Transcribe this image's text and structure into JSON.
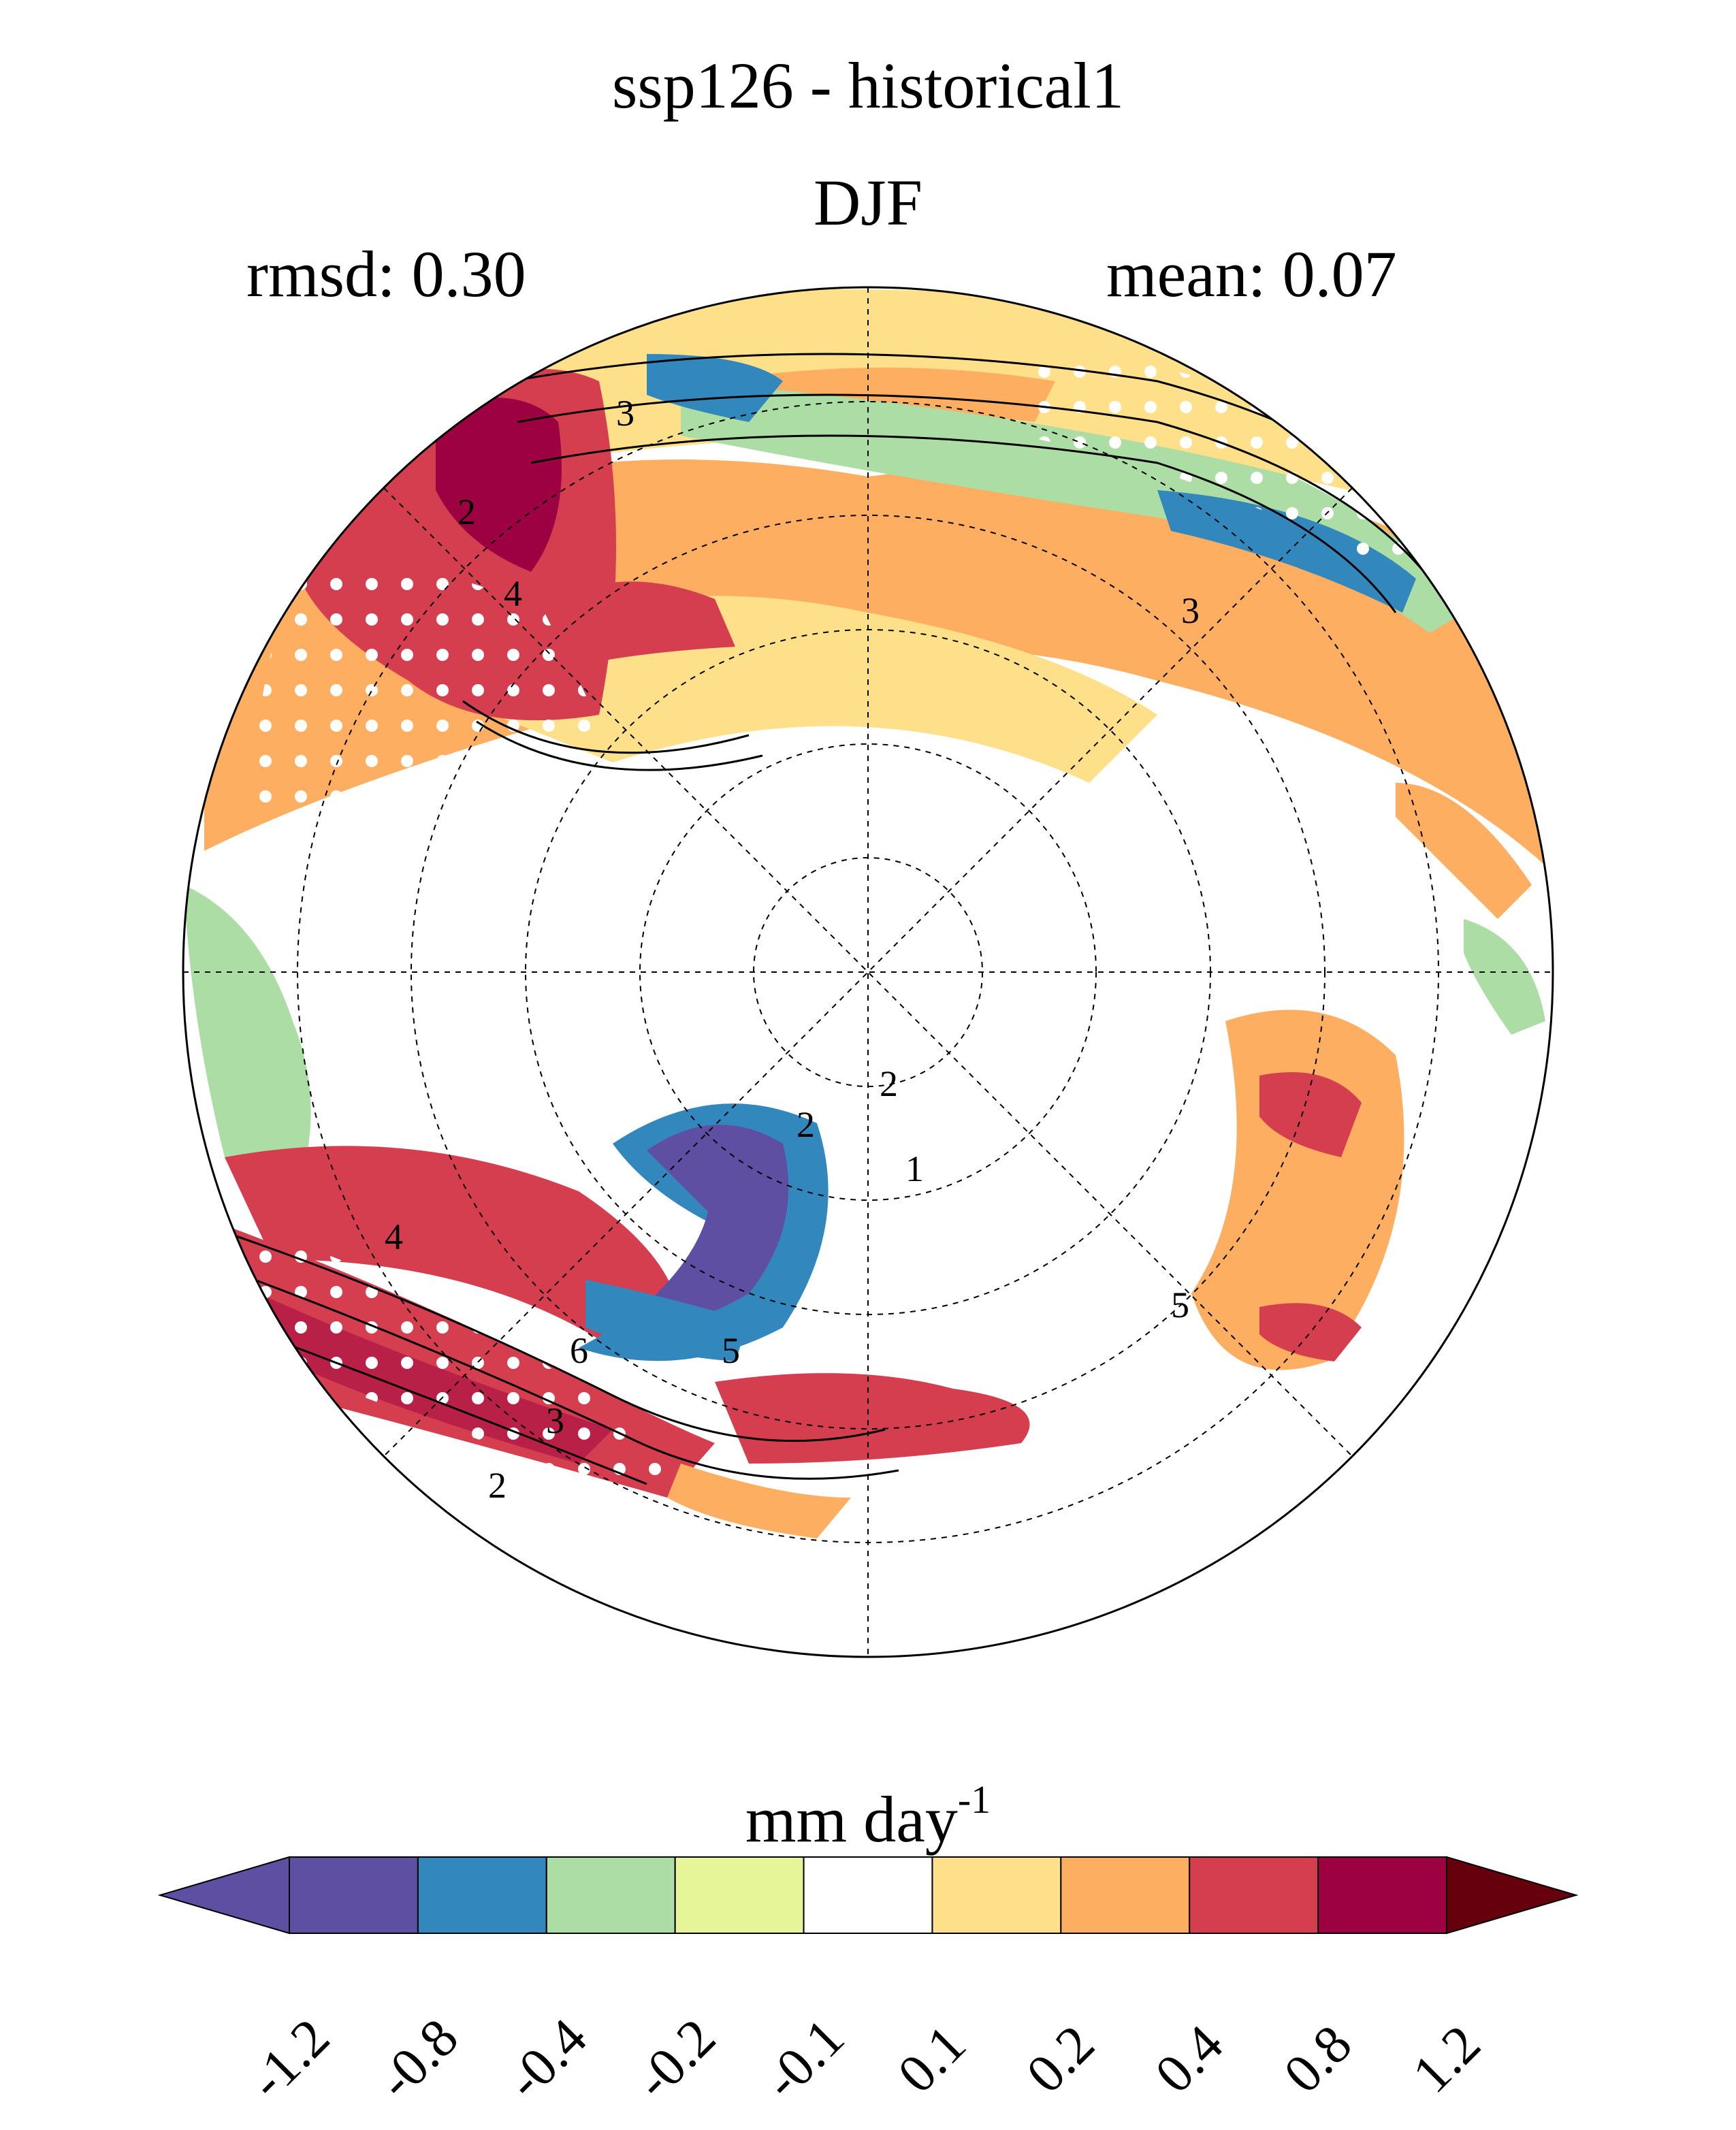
{
  "title": "ssp126 - historical1",
  "season": "DJF",
  "stats": {
    "rmsd": "rmsd: 0.30",
    "mean": "mean: 0.07"
  },
  "colorbar": {
    "units": "mm day",
    "units_exponent": "-1",
    "ticks": [
      "-1.2",
      "-0.8",
      "-0.4",
      "-0.2",
      "-0.1",
      "0.1",
      "0.2",
      "0.4",
      "0.8",
      "1.2"
    ],
    "colors": [
      "#5e4fa2",
      "#5e4fa2",
      "#3288bd",
      "#abdda4",
      "#e6f598",
      "#ffffff",
      "#fee08b",
      "#fdae61",
      "#d53e4f",
      "#9e0142",
      "#67000d"
    ]
  },
  "contour_labels": [
    "3",
    "2",
    "4",
    "3",
    "6",
    "5",
    "4",
    "3",
    "2",
    "2",
    "1",
    "2",
    "5"
  ],
  "projection": "north polar stereographic"
}
